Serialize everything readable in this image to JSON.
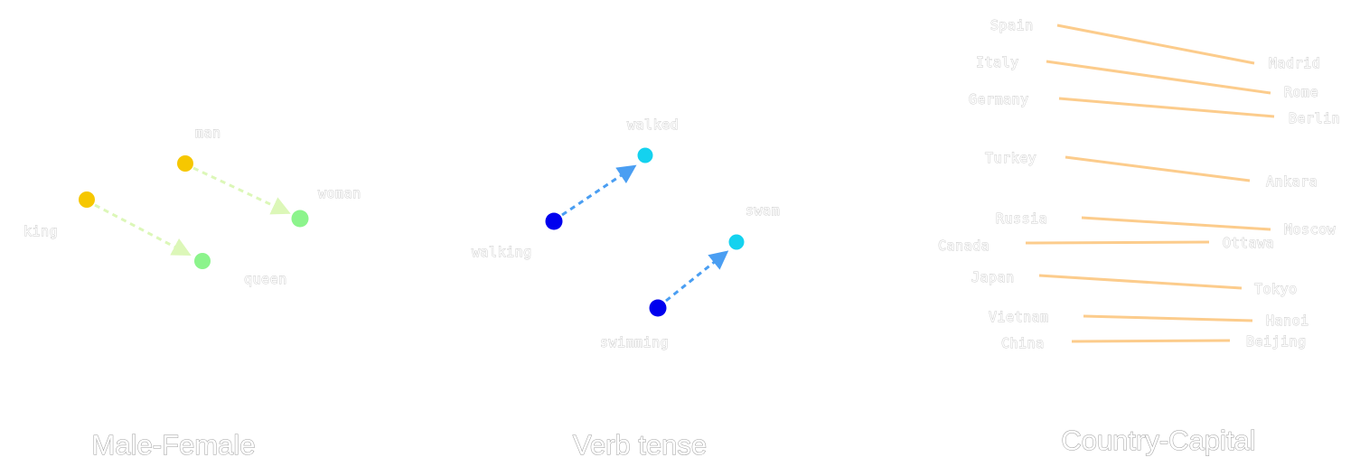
{
  "colors": {
    "male": "#f6c700",
    "female": "#8cf48c",
    "gender_arrow": "#dcf7b8",
    "verb_base": "#0000ee",
    "verb_past": "#14d2ef",
    "verb_arrow": "#4a9ef2",
    "capital_line": "#fccc8c"
  },
  "panels": {
    "gender": {
      "title": "Male-Female",
      "points": [
        {
          "label": "man",
          "role": "male"
        },
        {
          "label": "woman",
          "role": "female"
        },
        {
          "label": "king",
          "role": "male"
        },
        {
          "label": "queen",
          "role": "female"
        }
      ]
    },
    "verb": {
      "title": "Verb tense",
      "points": [
        {
          "label": "walking",
          "role": "verb_base"
        },
        {
          "label": "walked",
          "role": "verb_past"
        },
        {
          "label": "swimming",
          "role": "verb_base"
        },
        {
          "label": "swam",
          "role": "verb_past"
        }
      ]
    },
    "capital": {
      "title": "Country-Capital",
      "pairs": [
        {
          "country": "Spain",
          "capital": "Madrid"
        },
        {
          "country": "Italy",
          "capital": "Rome"
        },
        {
          "country": "Germany",
          "capital": "Berlin"
        },
        {
          "country": "Turkey",
          "capital": "Ankara"
        },
        {
          "country": "Russia",
          "capital": "Moscow"
        },
        {
          "country": "Canada",
          "capital": "Ottawa"
        },
        {
          "country": "Japan",
          "capital": "Tokyo"
        },
        {
          "country": "Vietnam",
          "capital": "Hanoi"
        },
        {
          "country": "China",
          "capital": "Beijing"
        }
      ]
    }
  }
}
